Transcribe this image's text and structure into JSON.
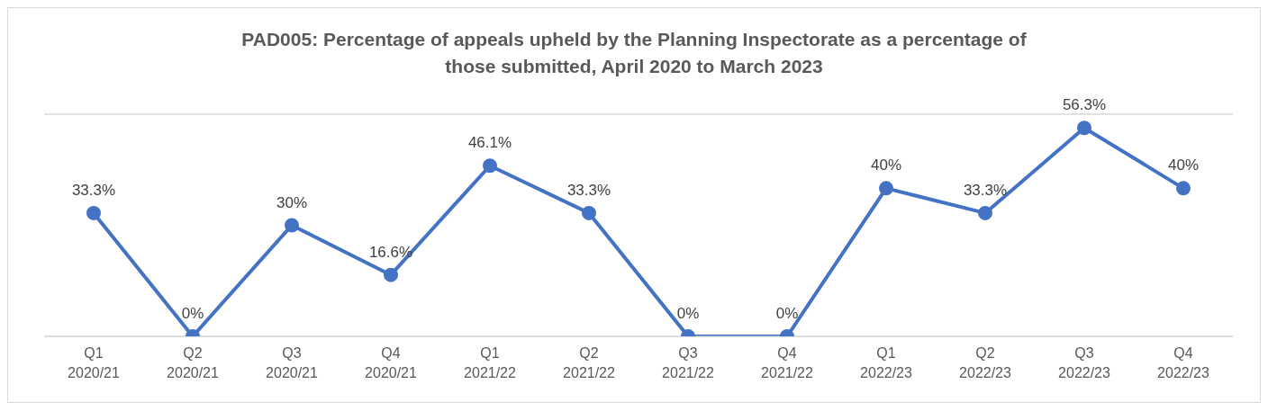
{
  "chart_data": {
    "type": "line",
    "title": "PAD005: Percentage of appeals upheld by the Planning Inspectorate as a percentage of those submitted, April 2020 to March 2023",
    "categories": [
      "Q1 2020/21",
      "Q2 2020/21",
      "Q3 2020/21",
      "Q4 2020/21",
      "Q1 2021/22",
      "Q2 2021/22",
      "Q3 2021/22",
      "Q4 2021/22",
      "Q1 2022/23",
      "Q2 2022/23",
      "Q3 2022/23",
      "Q4 2022/23"
    ],
    "series": [
      {
        "color": "#4472c4",
        "values": [
          33.3,
          0,
          30,
          16.6,
          46.1,
          33.3,
          0,
          0,
          40,
          33.3,
          56.3,
          40
        ],
        "value_labels": [
          "33.3%",
          "0%",
          "30%",
          "16.6%",
          "46.1%",
          "33.3%",
          "0%",
          "0%",
          "40%",
          "33.3%",
          "56.3%",
          "40%"
        ]
      }
    ],
    "ylim": [
      0,
      60
    ],
    "grid": "y",
    "tick_labels": "x",
    "marker": "circle",
    "line_style": "solid",
    "legend": false
  }
}
